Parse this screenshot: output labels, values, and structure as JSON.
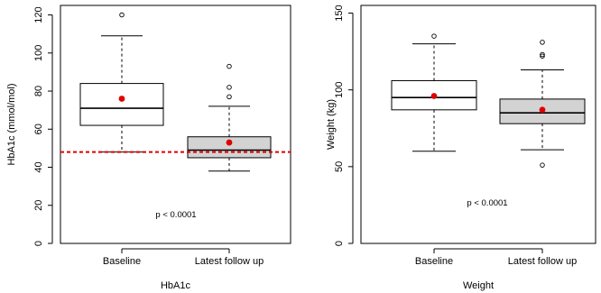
{
  "chart_data": [
    {
      "type": "box",
      "subtitle": "HbA1c",
      "ylabel": "HbA1c (mmol/mol)",
      "categories": [
        "Baseline",
        "Latest follow up"
      ],
      "ylim": [
        0,
        125
      ],
      "yticks": [
        0,
        20,
        40,
        60,
        80,
        100,
        120
      ],
      "boxes": [
        {
          "category": "Baseline",
          "whisker_low": 48,
          "q1": 62,
          "median": 71,
          "q3": 84,
          "whisker_high": 109,
          "mean": 76,
          "outliers": [
            120
          ],
          "fill": "#ffffff"
        },
        {
          "category": "Latest follow up",
          "whisker_low": 38,
          "q1": 45,
          "median": 49,
          "q3": 56,
          "whisker_high": 72,
          "mean": 53,
          "outliers": [
            77,
            82,
            93
          ],
          "fill": "#d3d3d3"
        }
      ],
      "reference_line": {
        "y": 48,
        "color": "#e00000",
        "style": "dashed"
      },
      "annotation": "p < 0.0001",
      "mean_marker_color": "#e00000"
    },
    {
      "type": "box",
      "subtitle": "Weight",
      "ylabel": "Weight (kg)",
      "categories": [
        "Baseline",
        "Latest follow up"
      ],
      "ylim": [
        0,
        155
      ],
      "yticks": [
        0,
        50,
        100,
        150
      ],
      "boxes": [
        {
          "category": "Baseline",
          "whisker_low": 60,
          "q1": 87,
          "median": 95,
          "q3": 106,
          "whisker_high": 130,
          "mean": 96,
          "outliers": [
            135
          ],
          "fill": "#ffffff"
        },
        {
          "category": "Latest follow up",
          "whisker_low": 61,
          "q1": 78,
          "median": 85,
          "q3": 94,
          "whisker_high": 113,
          "mean": 87,
          "outliers": [
            122,
            123,
            131,
            51
          ],
          "fill": "#d3d3d3"
        }
      ],
      "annotation": "p < 0.0001",
      "mean_marker_color": "#e00000"
    }
  ]
}
